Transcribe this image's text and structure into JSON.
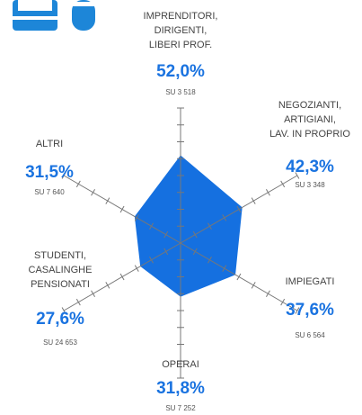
{
  "chart_data": {
    "type": "radar",
    "categories": [
      "IMPRENDITORI,\nDIRIGENTI,\nLIBERI PROF.",
      "NEGOZIANTI,\nARTIGIANI,\nLAV. IN PROPRIO",
      "IMPIEGATI",
      "OPERAI",
      "STUDENTI,\nCASALINGHE\nPENSIONATI",
      "ALTRI"
    ],
    "values": [
      52.0,
      42.3,
      37.6,
      31.8,
      27.6,
      31.5
    ],
    "value_labels": [
      "52,0%",
      "42,3%",
      "37,6%",
      "31,8%",
      "27,6%",
      "31,5%"
    ],
    "bases": [
      "SU 3 518",
      "SU 3 348",
      "SU 6 564",
      "SU 7 252",
      "SU 24 653",
      "SU 7 640"
    ],
    "color": "#1570e0",
    "rlim": [
      0,
      80
    ],
    "rticks": [
      10,
      20,
      30,
      40,
      50,
      60,
      70,
      80
    ]
  }
}
